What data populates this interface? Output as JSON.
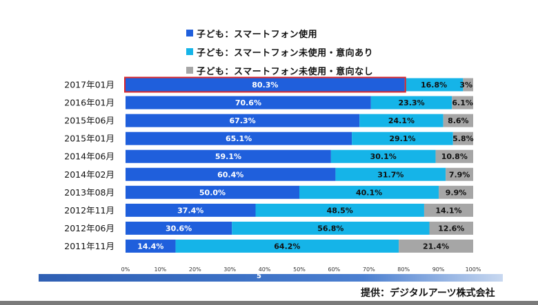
{
  "legend": [
    {
      "label": "子ども：スマートフォン使用",
      "color": "#1f5fdc"
    },
    {
      "label": "子ども：スマートフォン未使用・意向あり",
      "color": "#15b4e8"
    },
    {
      "label": "子ども：スマートフォン未使用・意向なし",
      "color": "#a6a6a6"
    }
  ],
  "chart_data": {
    "type": "bar",
    "orientation": "horizontal",
    "stacked": true,
    "categories": [
      "2017年01月",
      "2016年01月",
      "2015年06月",
      "2015年01月",
      "2014年06月",
      "2014年02月",
      "2013年08月",
      "2012年11月",
      "2012年06月",
      "2011年11月"
    ],
    "series": [
      {
        "name": "子ども：スマートフォン使用",
        "color": "#1f5fdc",
        "values": [
          80.3,
          70.6,
          67.3,
          65.1,
          59.1,
          60.4,
          50.0,
          37.4,
          30.6,
          14.4
        ],
        "labels": [
          "80.3%",
          "70.6%",
          "67.3%",
          "65.1%",
          "59.1%",
          "60.4%",
          "50.0%",
          "37.4%",
          "30.6%",
          "14.4%"
        ]
      },
      {
        "name": "子ども：スマートフォン未使用・意向あり",
        "color": "#15b4e8",
        "values": [
          16.8,
          23.3,
          24.1,
          29.1,
          30.1,
          31.7,
          40.1,
          48.5,
          56.8,
          64.2
        ],
        "labels": [
          "16.8%",
          "23.3%",
          "24.1%",
          "29.1%",
          "30.1%",
          "31.7%",
          "40.1%",
          "48.5%",
          "56.8%",
          "64.2%"
        ]
      },
      {
        "name": "子ども：スマートフォン未使用・意向なし",
        "color": "#a6a6a6",
        "values": [
          3,
          6.1,
          8.6,
          5.8,
          10.8,
          7.9,
          9.9,
          14.1,
          12.6,
          21.4
        ],
        "labels": [
          "3%",
          "6.1%",
          "8.6%",
          "5.8%",
          "10.8%",
          "7.9%",
          "9.9%",
          "14.1%",
          "12.6%",
          "21.4%"
        ]
      }
    ],
    "xlim": [
      0,
      100
    ],
    "xticks": [
      "0%",
      "10%",
      "20%",
      "30%",
      "40%",
      "50%",
      "60%",
      "70%",
      "80%",
      "90%",
      "100%"
    ],
    "highlight_category": "2017年01月",
    "highlight_color": "#d9262c",
    "grid": false
  },
  "footer": {
    "page_number": "5",
    "credit": "提供：デジタルアーツ株式会社"
  }
}
